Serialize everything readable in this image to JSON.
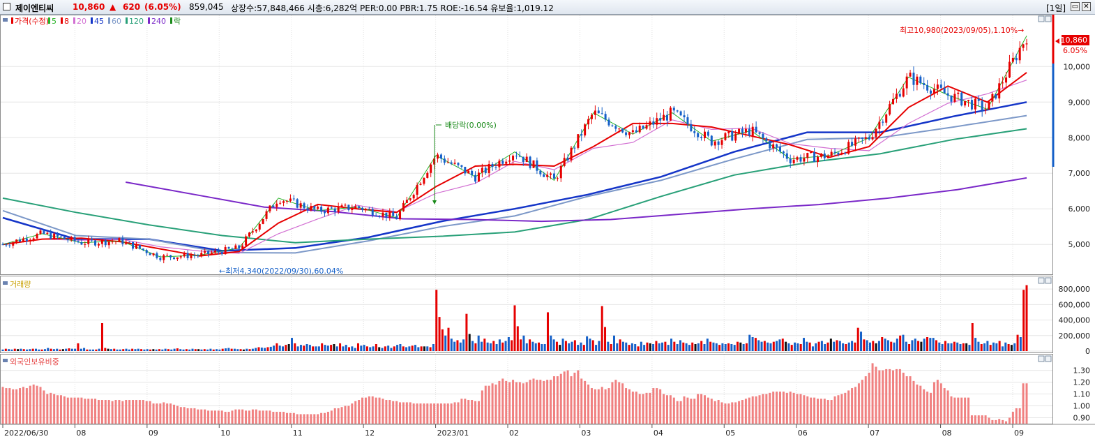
{
  "header": {
    "stock_name": "제이엔티씨",
    "price": "10,860",
    "change_arrow": "▲",
    "change": "620",
    "change_pct": "(6.05%)",
    "volume": "859,045",
    "info": "상장수:57,848,466 시총:6,282억 PER:0.00 PBR:1.75 ROE:-16.54 유보율:1,019.12",
    "period": "[1일]",
    "restore_icon": "restore-icon",
    "close_icon": "close-icon"
  },
  "colors": {
    "up": "#e60000",
    "down": "#1560c8",
    "ma5": "#27b327",
    "ma8": "#e60000",
    "ma20": "#d26fd2",
    "ma45": "#1435c8",
    "ma60": "#7c98c8",
    "ma120": "#28a078",
    "ma240": "#7a28c8"
  },
  "price_panel": {
    "legend": [
      {
        "label": "가격(수정)",
        "color": "#e60000"
      },
      {
        "label": "5",
        "color": "#27b327"
      },
      {
        "label": "8",
        "color": "#e60000"
      },
      {
        "label": "20",
        "color": "#d26fd2"
      },
      {
        "label": "45",
        "color": "#1435c8"
      },
      {
        "label": "60",
        "color": "#7c98c8"
      },
      {
        "label": "120",
        "color": "#28a078"
      },
      {
        "label": "240",
        "color": "#7a28c8"
      },
      {
        "label": "락",
        "color": "#1a8a1a"
      }
    ],
    "high_annotation": "최고10,980(2023/09/05),1.10%→",
    "low_annotation": "←최저4,340(2022/09/30),60.04%",
    "dividend_annotation": "배당락(0.00%)",
    "last_price_label": "10,860",
    "last_pct_label": "6.05%"
  },
  "volume_panel": {
    "legend": "거래량"
  },
  "foreign_panel": {
    "legend": "외국인보유비중"
  },
  "x_axis_labels": [
    "2022/06/30",
    "08",
    "09",
    "10",
    "11",
    "12",
    "2023/01",
    "02",
    "03",
    "04",
    "05",
    "06",
    "07",
    "08",
    "09"
  ],
  "chart_data": [
    {
      "type": "candlestick",
      "title": "가격(수정)",
      "ylim": [
        4200,
        11300
      ],
      "yticks": [
        5000,
        6000,
        7000,
        8000,
        9000,
        10000
      ],
      "ytick_labels": [
        "5,000",
        "6,000",
        "7,000",
        "8,000",
        "9,000",
        "10,000"
      ],
      "x": [
        "2022/06/30",
        "2022/08",
        "2022/09",
        "2022/10",
        "2022/11",
        "2022/12",
        "2023/01",
        "2023/02",
        "2023/03",
        "2023/04",
        "2023/05",
        "2023/06",
        "2023/07",
        "2023/08",
        "2023/09"
      ],
      "close_series": [
        5000,
        5300,
        5050,
        5100,
        4650,
        4700,
        4900,
        6300,
        5950,
        6050,
        5750,
        7500,
        6900,
        7600,
        6800,
        8700,
        8100,
        8700,
        7900,
        8200,
        7400,
        7500,
        8000,
        9700,
        9200,
        8800,
        10860
      ],
      "high": 10980,
      "high_date": "2023/09/05",
      "low": 4340,
      "low_date": "2022/09/30",
      "moving_averages": [
        {
          "name": "45",
          "values": [
            5750,
            5150,
            5150,
            4820,
            4900,
            5200,
            5650,
            6000,
            6400,
            6900,
            7600,
            8150,
            8150,
            8600,
            9000
          ]
        },
        {
          "name": "60",
          "values": [
            5950,
            5250,
            5150,
            4770,
            4760,
            5100,
            5500,
            5800,
            6350,
            6800,
            7400,
            7950,
            8000,
            8300,
            8620
          ]
        },
        {
          "name": "120",
          "values": [
            6300,
            5900,
            5550,
            5250,
            5050,
            5150,
            5230,
            5350,
            5700,
            6350,
            6950,
            7300,
            7550,
            7950,
            8250
          ]
        },
        {
          "name": "240",
          "values": [
            6750,
            6400,
            6050,
            5920,
            5720,
            5700,
            5650,
            5700,
            5850,
            6000,
            6120,
            6300,
            6540,
            6870
          ]
        }
      ]
    },
    {
      "type": "bar",
      "title": "거래량",
      "ylim": [
        0,
        900000
      ],
      "yticks": [
        0,
        200000,
        400000,
        600000,
        800000
      ],
      "ytick_labels": [
        "0",
        "200,000",
        "400,000",
        "600,000",
        "800,000"
      ],
      "values": [
        20000,
        30000,
        25000,
        20000,
        30000,
        25000,
        30000,
        25000,
        20000,
        25000,
        30000,
        30000,
        20000,
        20000,
        25000,
        40000,
        30000,
        25000,
        30000,
        20000,
        25000,
        30000,
        35000,
        30000,
        30000,
        100000,
        30000,
        40000,
        20000,
        20000,
        20000,
        20000,
        30000,
        360000,
        40000,
        30000,
        25000,
        30000,
        20000,
        20000,
        25000,
        30000,
        20000,
        30000,
        25000,
        30000,
        25000,
        20000,
        25000,
        20000,
        25000,
        20000,
        25000,
        20000,
        30000,
        25000,
        20000,
        30000,
        35000,
        25000,
        20000,
        25000,
        20000,
        30000,
        25000,
        25000,
        20000,
        25000,
        20000,
        30000,
        20000,
        25000,
        20000,
        30000,
        35000,
        40000,
        30000,
        30000,
        25000,
        25000,
        20000,
        30000,
        25000,
        30000,
        40000,
        50000,
        45000,
        40000,
        50000,
        55000,
        70000,
        100000,
        70000,
        60000,
        80000,
        90000,
        170000,
        100000,
        60000,
        80000,
        70000,
        90000,
        80000,
        60000,
        60000,
        60000,
        100000,
        80000,
        70000,
        80000,
        90000,
        60000,
        100000,
        60000,
        80000,
        50000,
        60000,
        40000,
        100000,
        70000,
        80000,
        60000,
        50000,
        60000,
        90000,
        50000,
        40000,
        60000,
        70000,
        40000,
        60000,
        80000,
        90000,
        60000,
        50000,
        60000,
        70000,
        80000,
        50000,
        60000,
        60000,
        60000,
        50000,
        90000,
        790000,
        440000,
        280000,
        200000,
        300000,
        160000,
        120000,
        140000,
        110000,
        150000,
        480000,
        220000,
        130000,
        100000,
        200000,
        120000,
        160000,
        110000,
        100000,
        130000,
        90000,
        150000,
        110000,
        130000,
        180000,
        140000,
        590000,
        320000,
        150000,
        200000,
        100000,
        150000,
        120000,
        100000,
        110000,
        90000,
        90000,
        500000,
        200000,
        150000,
        120000,
        80000,
        160000,
        130000,
        100000,
        120000,
        140000,
        80000,
        110000,
        80000,
        190000,
        160000,
        140000,
        80000,
        130000,
        580000,
        310000,
        120000,
        90000,
        200000,
        100000,
        150000,
        120000,
        110000,
        80000,
        100000,
        90000,
        60000,
        120000,
        80000,
        110000,
        100000,
        90000,
        130000,
        100000,
        110000,
        120000,
        80000,
        160000,
        120000,
        90000,
        140000,
        110000,
        100000,
        80000,
        110000,
        90000,
        100000,
        130000,
        90000,
        160000,
        120000,
        110000,
        100000,
        80000,
        100000,
        90000,
        100000,
        90000,
        80000,
        120000,
        110000,
        90000,
        100000,
        210000,
        180000,
        170000,
        140000,
        120000,
        130000,
        110000,
        100000,
        120000,
        130000,
        150000,
        160000,
        120000,
        100000,
        80000,
        110000,
        100000,
        90000,
        170000,
        120000,
        110000,
        60000,
        100000,
        120000,
        130000,
        90000,
        110000,
        160000,
        120000,
        140000,
        130000,
        100000,
        90000,
        110000,
        130000,
        110000,
        300000,
        250000,
        150000,
        140000,
        110000,
        130000,
        100000,
        130000,
        180000,
        160000,
        140000,
        120000,
        110000,
        160000,
        200000,
        210000,
        120000,
        90000,
        140000,
        160000,
        130000,
        120000,
        160000,
        180000,
        170000,
        170000,
        140000,
        110000,
        90000,
        130000,
        100000,
        100000,
        120000,
        110000,
        90000,
        100000,
        100000,
        80000,
        360000,
        170000,
        120000,
        90000,
        100000,
        130000,
        80000,
        110000,
        100000,
        130000,
        60000,
        110000,
        90000,
        80000,
        100000,
        210000,
        180000,
        790000,
        850000
      ]
    },
    {
      "type": "bar",
      "title": "외국인보유비중",
      "ylim": [
        0.85,
        1.38
      ],
      "yticks": [
        0.9,
        1.0,
        1.1,
        1.2,
        1.3
      ],
      "ytick_labels": [
        "0.90",
        "1.00",
        "1.10",
        "1.20",
        "1.30"
      ],
      "values": [
        1.16,
        1.15,
        1.15,
        1.14,
        1.14,
        1.15,
        1.16,
        1.15,
        1.17,
        1.18,
        1.17,
        1.16,
        1.13,
        1.1,
        1.11,
        1.1,
        1.09,
        1.09,
        1.08,
        1.07,
        1.07,
        1.07,
        1.07,
        1.07,
        1.06,
        1.06,
        1.06,
        1.06,
        1.05,
        1.05,
        1.05,
        1.05,
        1.04,
        1.05,
        1.05,
        1.04,
        1.05,
        1.05,
        1.05,
        1.05,
        1.05,
        1.05,
        1.04,
        1.04,
        1.02,
        1.02,
        1.02,
        1.03,
        1.02,
        1.02,
        1.01,
        1.0,
        0.99,
        0.99,
        0.98,
        0.98,
        0.98,
        0.97,
        0.97,
        0.97,
        0.96,
        0.96,
        0.96,
        0.96,
        0.96,
        0.95,
        0.95,
        0.96,
        0.97,
        0.97,
        0.97,
        0.96,
        0.96,
        0.97,
        0.97,
        0.96,
        0.96,
        0.96,
        0.96,
        0.95,
        0.95,
        0.95,
        0.95,
        0.94,
        0.94,
        0.94,
        0.93,
        0.93,
        0.93,
        0.93,
        0.93,
        0.93,
        0.93,
        0.94,
        0.94,
        0.95,
        0.96,
        0.98,
        0.98,
        0.99,
        1.0,
        1.0,
        1.02,
        1.04,
        1.05,
        1.07,
        1.07,
        1.08,
        1.08,
        1.07,
        1.07,
        1.06,
        1.05,
        1.05,
        1.04,
        1.04,
        1.03,
        1.03,
        1.03,
        1.03,
        1.02,
        1.02,
        1.02,
        1.02,
        1.02,
        1.02,
        1.02,
        1.02,
        1.02,
        1.02,
        1.02,
        1.02,
        1.03,
        1.03,
        1.06,
        1.06,
        1.05,
        1.05,
        1.04,
        1.04,
        1.13,
        1.17,
        1.17,
        1.19,
        1.18,
        1.21,
        1.23,
        1.21,
        1.2,
        1.22,
        1.2,
        1.2,
        1.19,
        1.2,
        1.22,
        1.23,
        1.22,
        1.22,
        1.21,
        1.22,
        1.22,
        1.25,
        1.25,
        1.27,
        1.29,
        1.3,
        1.25,
        1.28,
        1.3,
        1.23,
        1.21,
        1.18,
        1.15,
        1.14,
        1.14,
        1.16,
        1.14,
        1.15,
        1.2,
        1.22,
        1.2,
        1.19,
        1.15,
        1.14,
        1.12,
        1.12,
        1.1,
        1.1,
        1.11,
        1.11,
        1.15,
        1.15,
        1.14,
        1.1,
        1.09,
        1.09,
        1.07,
        1.04,
        1.04,
        1.08,
        1.07,
        1.06,
        1.06,
        1.1,
        1.1,
        1.09,
        1.07,
        1.06,
        1.04,
        1.05,
        1.03,
        1.02,
        1.02,
        1.03,
        1.03,
        1.04,
        1.05,
        1.06,
        1.07,
        1.08,
        1.08,
        1.09,
        1.1,
        1.1,
        1.11,
        1.12,
        1.12,
        1.12,
        1.12,
        1.11,
        1.12,
        1.11,
        1.1,
        1.1,
        1.09,
        1.08,
        1.07,
        1.07,
        1.06,
        1.06,
        1.06,
        1.05,
        1.05,
        1.08,
        1.09,
        1.1,
        1.11,
        1.13,
        1.15,
        1.16,
        1.19,
        1.22,
        1.25,
        1.28,
        1.36,
        1.33,
        1.3,
        1.3,
        1.31,
        1.31,
        1.3,
        1.31,
        1.31,
        1.28,
        1.25,
        1.25,
        1.21,
        1.18,
        1.17,
        1.14,
        1.12,
        1.11,
        1.2,
        1.22,
        1.19,
        1.15,
        1.13,
        1.08,
        1.07,
        1.07,
        1.07,
        1.07,
        1.07,
        0.92,
        0.92,
        0.92,
        0.92,
        0.92,
        0.9,
        0.88,
        0.88,
        0.89,
        0.88,
        0.87,
        0.9,
        0.95,
        0.98,
        0.98,
        1.19,
        1.19
      ]
    }
  ]
}
